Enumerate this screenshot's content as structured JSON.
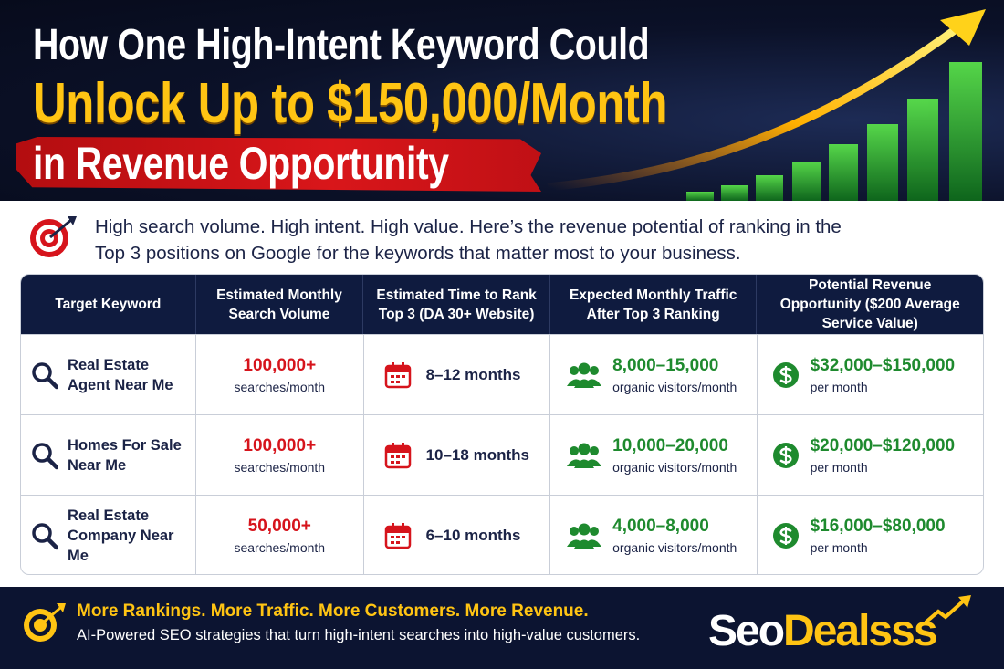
{
  "header": {
    "title_line1": "How One High-Intent Keyword Could",
    "title_line2": "Unlock Up to $150,000/Month",
    "title_line3": "in Revenue Opportunity"
  },
  "intro": "High search volume. High intent. High value. Here’s the revenue potential of ranking in the Top 3 positions on Google for the keywords that matter most to your business.",
  "table": {
    "columns": [
      "Target Keyword",
      "Estimated Monthly Search Volume",
      "Estimated Time to Rank Top 3 (DA 30+ Website)",
      "Expected Monthly Traffic After Top 3 Ranking",
      "Potential Revenue Opportunity ($200 Average Service Value)"
    ],
    "rows": [
      {
        "keyword": "Real Estate Agent Near Me",
        "volume": "100,000+",
        "volume_unit": "searches/month",
        "time": "8–12 months",
        "traffic": "8,000–15,000",
        "traffic_unit": "organic visitors/month",
        "revenue": "$32,000–$150,000",
        "revenue_unit": "per month"
      },
      {
        "keyword": "Homes For Sale Near Me",
        "volume": "100,000+",
        "volume_unit": "searches/month",
        "time": "10–18 months",
        "traffic": "10,000–20,000",
        "traffic_unit": "organic visitors/month",
        "revenue": "$20,000–$120,000",
        "revenue_unit": "per month"
      },
      {
        "keyword": "Real Estate Company Near Me",
        "volume": "50,000+",
        "volume_unit": "searches/month",
        "time": "6–10 months",
        "traffic": "4,000–8,000",
        "traffic_unit": "organic visitors/month",
        "revenue": "$16,000–$80,000",
        "revenue_unit": "per month"
      }
    ]
  },
  "footer": {
    "headline": "More Rankings. More Traffic. More Customers. More Revenue.",
    "tagline": "AI-Powered SEO strategies that turn high-intent searches into high-value customers."
  },
  "logo": {
    "part1": "Seo",
    "part2": "Dealsss"
  }
}
